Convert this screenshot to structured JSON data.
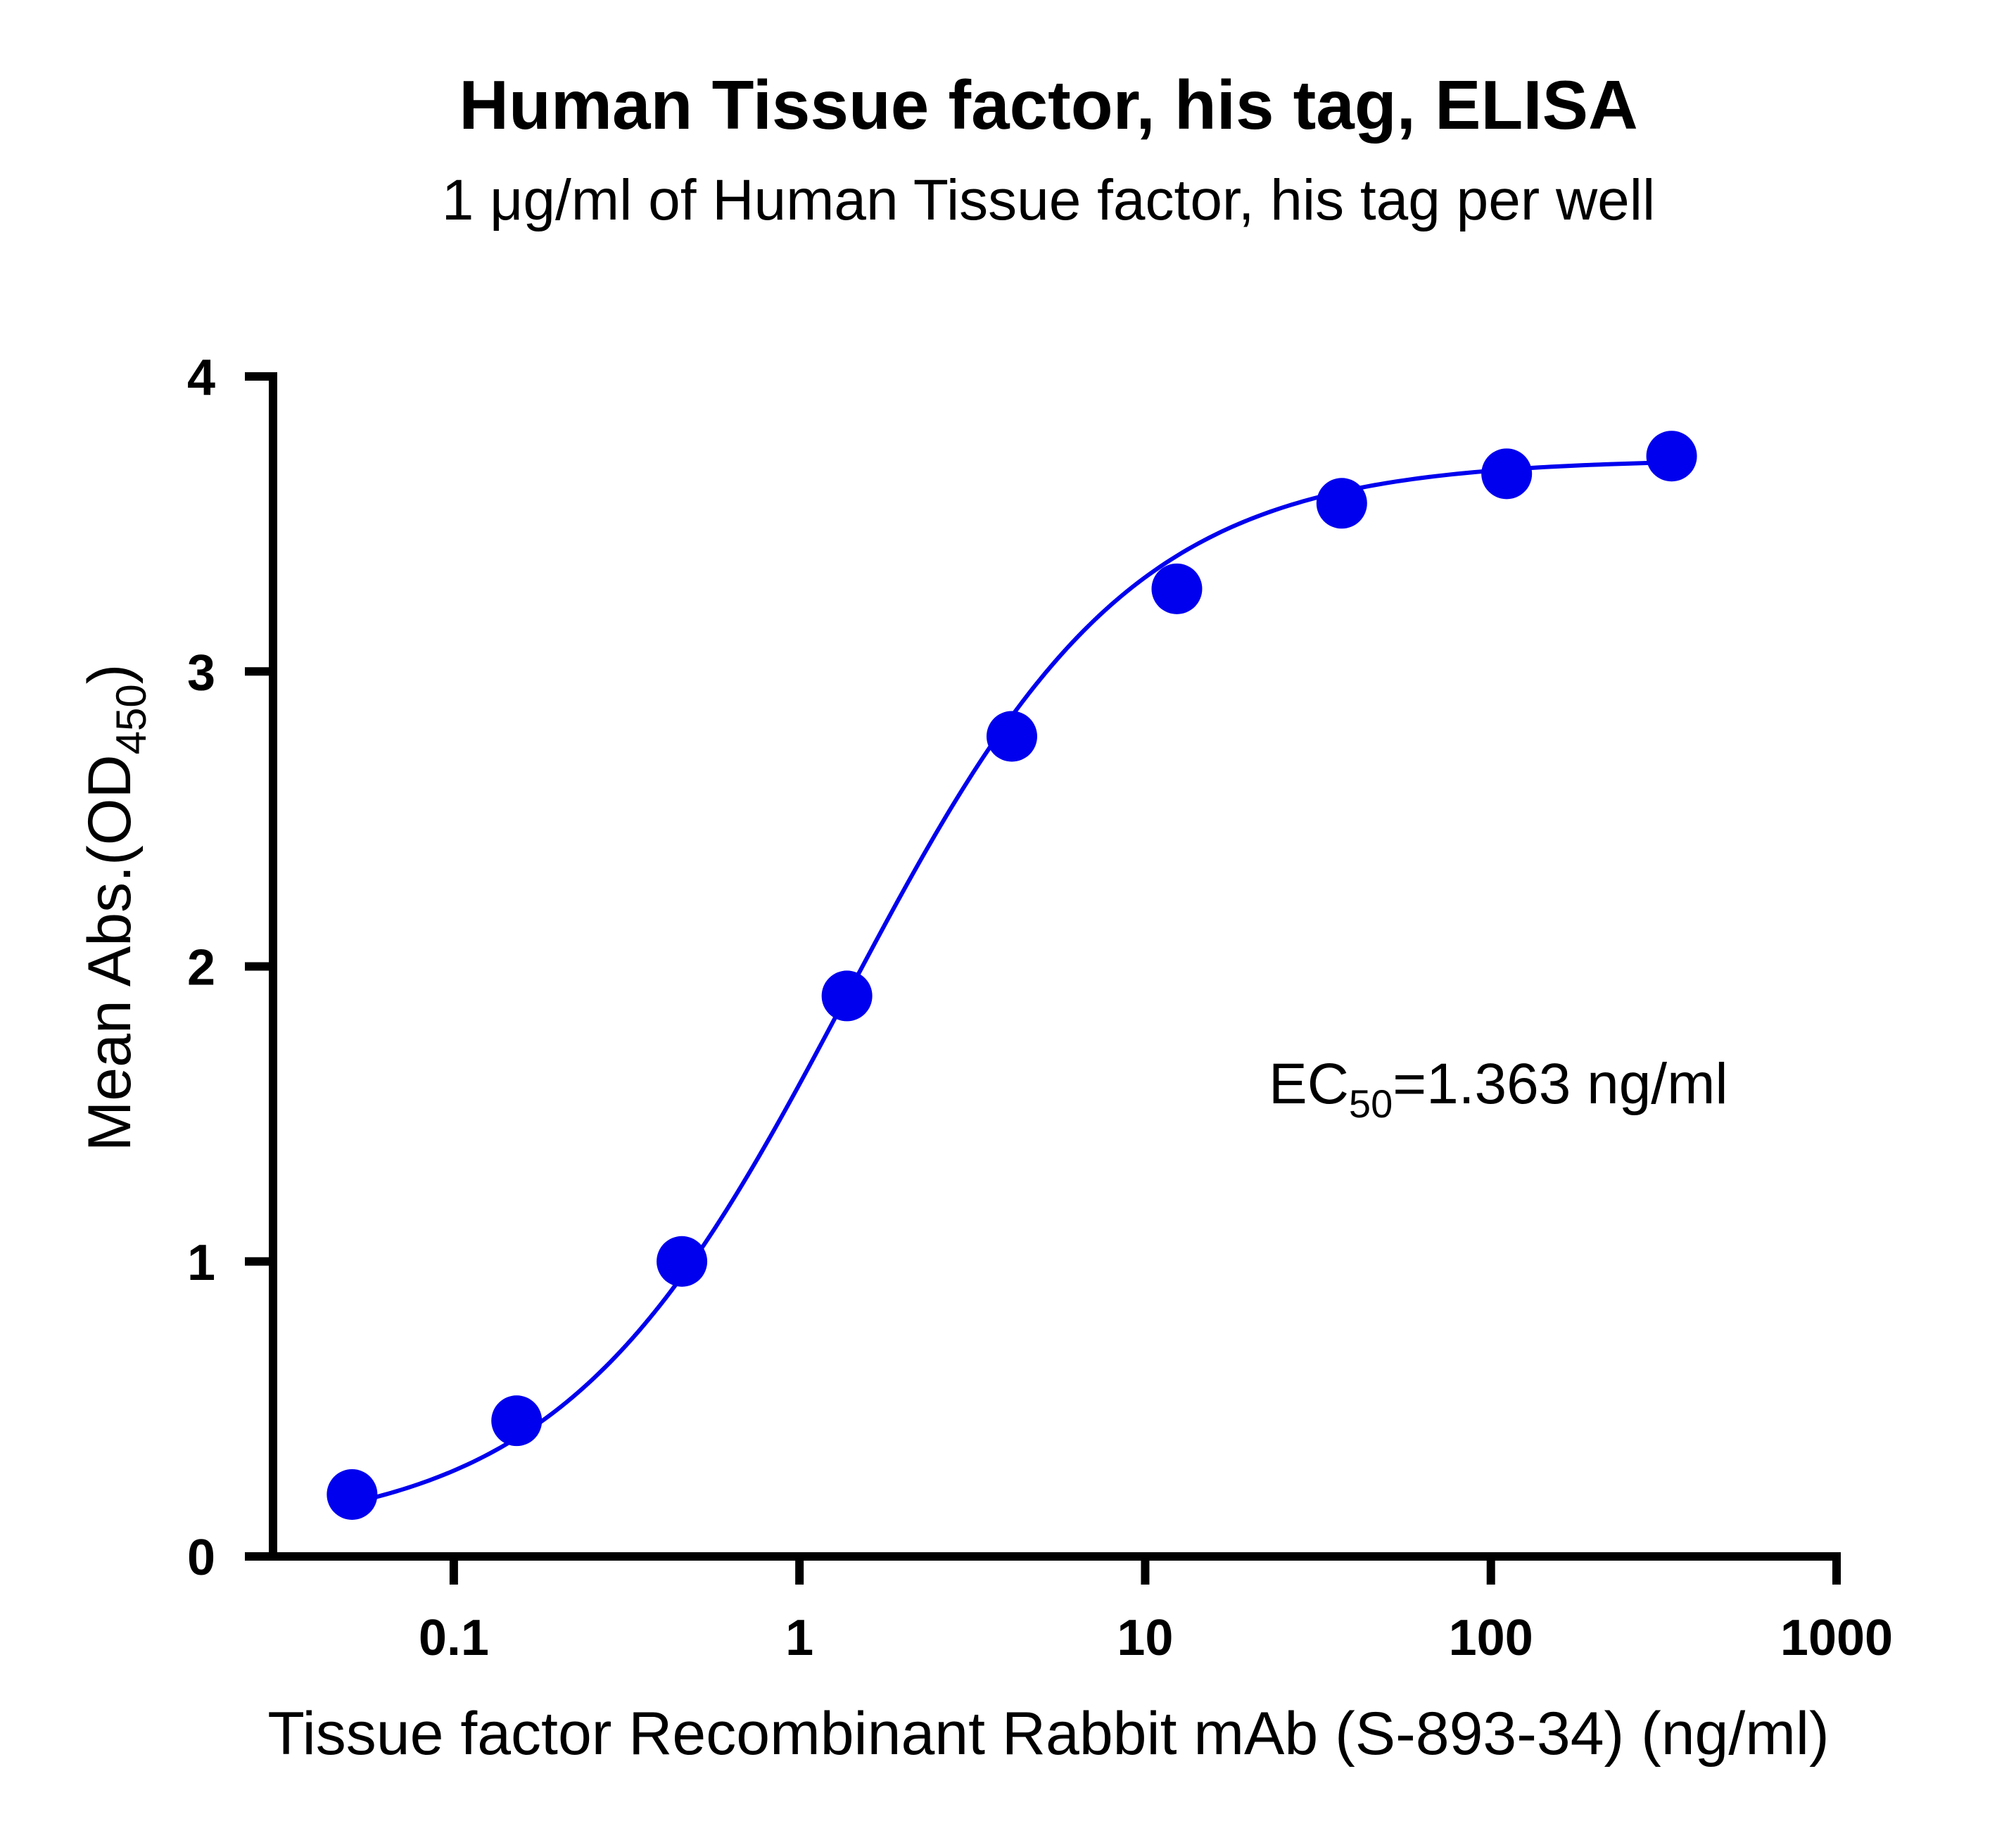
{
  "chart_data": {
    "type": "scatter",
    "title": "Human Tissue factor, his tag, ELISA",
    "subtitle": "1 μg/ml of Human Tissue factor, his tag per well",
    "xlabel": "Tissue factor Recombinant Rabbit mAb (S-893-34) (ng/ml)",
    "ylabel": {
      "main": "Mean Abs.(OD",
      "subscript": "450",
      "close": ")"
    },
    "annotation": {
      "main": "EC",
      "subscript": "50",
      "rest": "=1.363 ng/ml"
    },
    "x_scale": "log",
    "xlim": [
      0.03,
      1000
    ],
    "ylim": [
      0,
      4
    ],
    "x_ticks": [
      0.1,
      1,
      10,
      100,
      1000
    ],
    "x_tick_labels": [
      "0.1",
      "1",
      "10",
      "100",
      "1000"
    ],
    "y_ticks": [
      0,
      1,
      2,
      3,
      4
    ],
    "y_tick_labels": [
      "0",
      "1",
      "2",
      "3",
      "4"
    ],
    "grid": false,
    "color": "#0000ee",
    "series": [
      {
        "x": [
          0.0508,
          0.152,
          0.457,
          1.372,
          4.115,
          12.35,
          37.04,
          111.1,
          333.3
        ],
        "y": [
          0.21,
          0.46,
          1.0,
          1.9,
          2.78,
          3.28,
          3.57,
          3.67,
          3.73
        ]
      }
    ],
    "fit_curve": {
      "model": "4PL",
      "bottom": 0.07,
      "top": 3.72,
      "ec50": 1.363,
      "hill": 1.05
    }
  }
}
